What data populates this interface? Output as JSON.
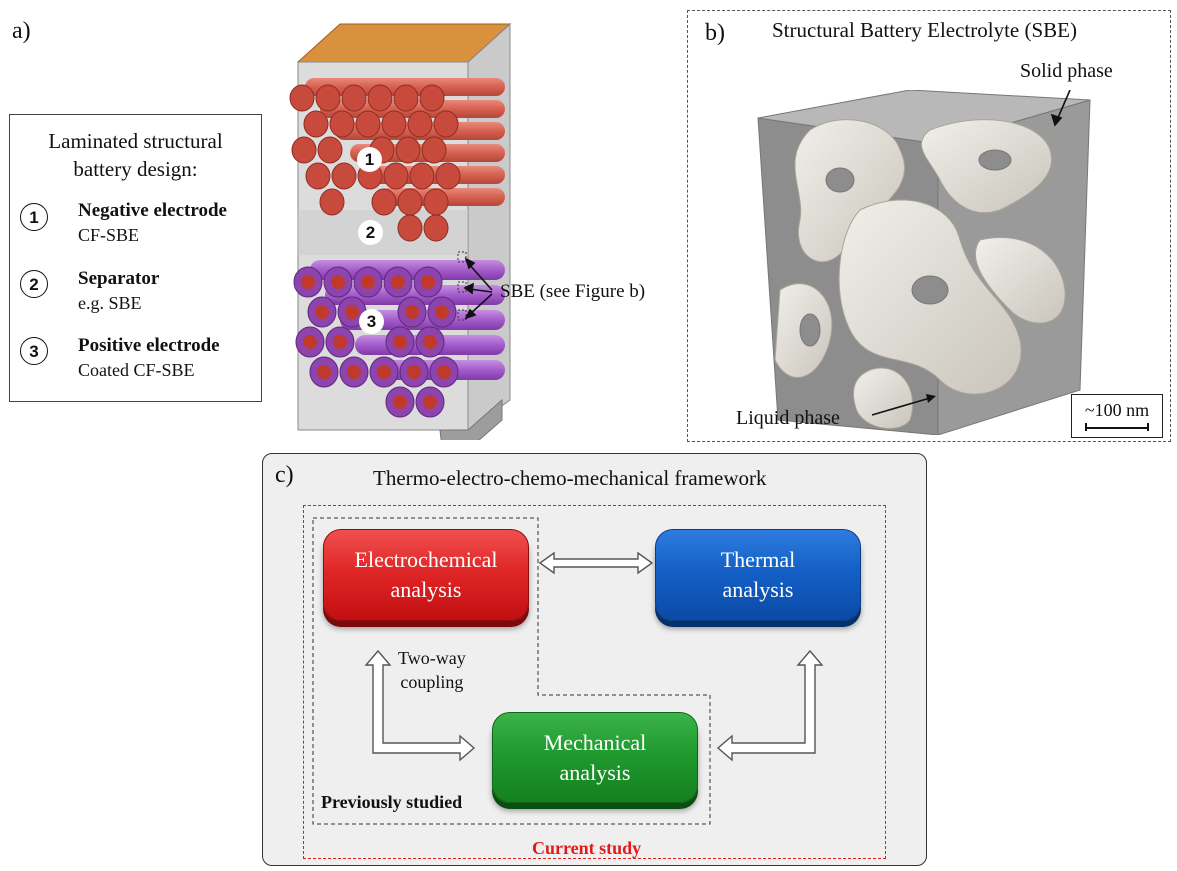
{
  "panel_a": {
    "letter": "a)",
    "legend": {
      "title_line1": "Laminated structural",
      "title_line2": "battery design:",
      "items": [
        {
          "num": "1",
          "name": "Negative electrode",
          "desc": "CF-SBE"
        },
        {
          "num": "2",
          "name": "Separator",
          "desc": "e.g. SBE"
        },
        {
          "num": "3",
          "name": "Positive electrode",
          "desc": "Coated CF-SBE"
        }
      ]
    },
    "illustration_markers": [
      "1",
      "2",
      "3"
    ],
    "sbe_callout": "SBE (see Figure b)",
    "colors": {
      "negative_fibers": "#d9614f",
      "positive_fibers": "#9b3fc0",
      "positive_core": "#c0392b",
      "current_collector": "#d9913d"
    }
  },
  "panel_b": {
    "letter": "b)",
    "title": "Structural Battery Electrolyte (SBE)",
    "solid_label": "Solid phase",
    "liquid_label": "Liquid phase",
    "scale_label": "~100 nm"
  },
  "panel_c": {
    "letter": "c)",
    "title": "Thermo-electro-chemo-mechanical framework",
    "boxes": {
      "electrochemical": {
        "line1": "Electrochemical",
        "line2": "analysis",
        "color": "#e02727"
      },
      "thermal": {
        "line1": "Thermal",
        "line2": "analysis",
        "color": "#1460c6"
      },
      "mechanical": {
        "line1": "Mechanical",
        "line2": "analysis",
        "color": "#1f9a2f"
      }
    },
    "coupling_line1": "Two-way",
    "coupling_line2": "coupling",
    "previously_studied": "Previously studied",
    "current_study": "Current study",
    "current_study_color": "#e01b1b"
  }
}
